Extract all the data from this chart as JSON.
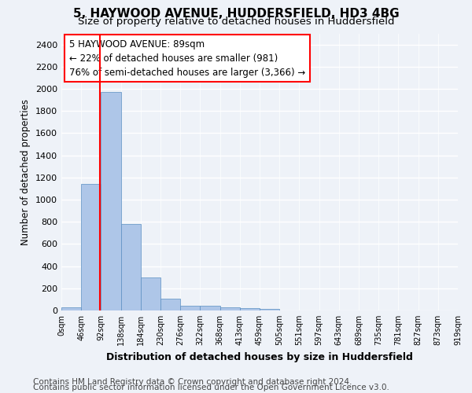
{
  "title": "5, HAYWOOD AVENUE, HUDDERSFIELD, HD3 4BG",
  "subtitle": "Size of property relative to detached houses in Huddersfield",
  "xlabel": "Distribution of detached houses by size in Huddersfield",
  "ylabel": "Number of detached properties",
  "bin_labels": [
    "0sqm",
    "46sqm",
    "92sqm",
    "138sqm",
    "184sqm",
    "230sqm",
    "276sqm",
    "322sqm",
    "368sqm",
    "413sqm",
    "459sqm",
    "505sqm",
    "551sqm",
    "597sqm",
    "643sqm",
    "689sqm",
    "735sqm",
    "781sqm",
    "827sqm",
    "873sqm",
    "919sqm"
  ],
  "bar_values": [
    30,
    1145,
    1970,
    780,
    300,
    105,
    40,
    40,
    25,
    20,
    15,
    0,
    0,
    0,
    0,
    0,
    0,
    0,
    0,
    0
  ],
  "bar_color": "#aec6e8",
  "bar_edge_color": "#5a8fc2",
  "property_size": 89,
  "annotation_line1": "5 HAYWOOD AVENUE: 89sqm",
  "annotation_line2": "← 22% of detached houses are smaller (981)",
  "annotation_line3": "76% of semi-detached houses are larger (3,366) →",
  "ylim": [
    0,
    2500
  ],
  "yticks": [
    0,
    200,
    400,
    600,
    800,
    1000,
    1200,
    1400,
    1600,
    1800,
    2000,
    2200,
    2400
  ],
  "footer_line1": "Contains HM Land Registry data © Crown copyright and database right 2024.",
  "footer_line2": "Contains public sector information licensed under the Open Government Licence v3.0.",
  "background_color": "#eef2f8",
  "grid_color": "#ffffff",
  "title_fontsize": 11,
  "subtitle_fontsize": 9.5,
  "annotation_fontsize": 8.5,
  "footer_fontsize": 7.5,
  "ylabel_fontsize": 8.5,
  "xlabel_fontsize": 9
}
